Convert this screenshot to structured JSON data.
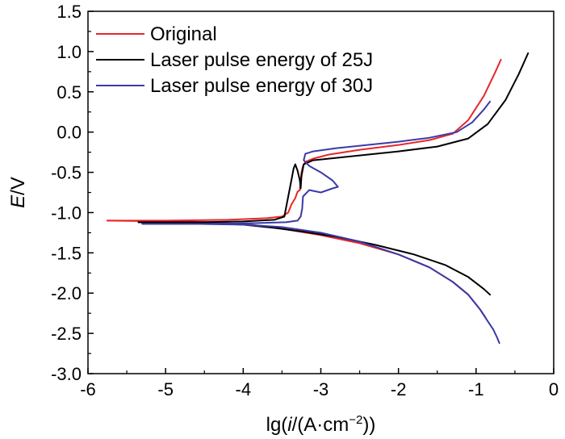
{
  "chart_data": {
    "type": "line",
    "title": "",
    "xlabel": {
      "prefix": "lg(",
      "italic": "i",
      "mid": "/(A·cm",
      "sup": "−2",
      "suffix": "))"
    },
    "ylabel": {
      "italic": "E",
      "rest": "/V"
    },
    "xlim": [
      -6,
      0
    ],
    "ylim": [
      -3.0,
      1.5
    ],
    "xticks": [
      -6,
      -5,
      -4,
      -3,
      -2,
      -1,
      0
    ],
    "xtick_labels": [
      "-6",
      "-5",
      "-4",
      "-3",
      "-2",
      "-1",
      "0"
    ],
    "yticks": [
      -3.0,
      -2.5,
      -2.0,
      -1.5,
      -1.0,
      -0.5,
      0.0,
      0.5,
      1.0,
      1.5
    ],
    "ytick_labels": [
      "-3.0",
      "-2.5",
      "-2.0",
      "-1.5",
      "-1.0",
      "-0.5",
      "0.0",
      "0.5",
      "1.0",
      "1.5"
    ],
    "legend_position": "top-left",
    "series": [
      {
        "name": "Original",
        "color": "#e8262a",
        "points": [
          [
            -5.75,
            -1.1
          ],
          [
            -5.0,
            -1.1
          ],
          [
            -4.2,
            -1.09
          ],
          [
            -3.7,
            -1.07
          ],
          [
            -3.5,
            -1.05
          ],
          [
            -3.42,
            -1.0
          ],
          [
            -3.38,
            -0.9
          ],
          [
            -3.33,
            -0.82
          ],
          [
            -3.3,
            -0.74
          ],
          [
            -3.27,
            -0.72
          ],
          [
            -3.26,
            -0.6
          ],
          [
            -3.25,
            -0.5
          ],
          [
            -3.23,
            -0.42
          ],
          [
            -3.2,
            -0.37
          ],
          [
            -3.1,
            -0.33
          ],
          [
            -2.9,
            -0.28
          ],
          [
            -2.5,
            -0.22
          ],
          [
            -2.0,
            -0.16
          ],
          [
            -1.6,
            -0.1
          ],
          [
            -1.3,
            -0.02
          ],
          [
            -1.1,
            0.15
          ],
          [
            -0.9,
            0.45
          ],
          [
            -0.75,
            0.75
          ],
          [
            -0.68,
            0.9
          ]
        ]
      },
      {
        "name": "Laser pulse energy of 25J",
        "color": "#000000",
        "points": [
          [
            -5.35,
            -1.12
          ],
          [
            -4.6,
            -1.12
          ],
          [
            -4.0,
            -1.11
          ],
          [
            -3.6,
            -1.09
          ],
          [
            -3.47,
            -1.05
          ],
          [
            -3.45,
            -0.95
          ],
          [
            -3.42,
            -0.8
          ],
          [
            -3.38,
            -0.6
          ],
          [
            -3.35,
            -0.45
          ],
          [
            -3.33,
            -0.4
          ],
          [
            -3.3,
            -0.48
          ],
          [
            -3.27,
            -0.6
          ],
          [
            -3.26,
            -0.7
          ],
          [
            -3.25,
            -0.55
          ],
          [
            -3.22,
            -0.4
          ],
          [
            -3.1,
            -0.35
          ],
          [
            -2.6,
            -0.3
          ],
          [
            -2.0,
            -0.24
          ],
          [
            -1.5,
            -0.18
          ],
          [
            -1.1,
            -0.08
          ],
          [
            -0.85,
            0.1
          ],
          [
            -0.62,
            0.4
          ],
          [
            -0.45,
            0.72
          ],
          [
            -0.33,
            0.98
          ]
        ]
      },
      {
        "name": "Laser pulse energy of 30J",
        "color": "#3a3aa8",
        "points": [
          [
            -5.3,
            -1.14
          ],
          [
            -4.5,
            -1.14
          ],
          [
            -3.8,
            -1.13
          ],
          [
            -3.45,
            -1.12
          ],
          [
            -3.3,
            -1.1
          ],
          [
            -3.26,
            -1.05
          ],
          [
            -3.24,
            -0.95
          ],
          [
            -3.23,
            -0.8
          ],
          [
            -3.15,
            -0.72
          ],
          [
            -3.0,
            -0.75
          ],
          [
            -2.85,
            -0.7
          ],
          [
            -2.78,
            -0.68
          ],
          [
            -2.85,
            -0.6
          ],
          [
            -3.0,
            -0.5
          ],
          [
            -3.15,
            -0.42
          ],
          [
            -3.22,
            -0.35
          ],
          [
            -3.2,
            -0.27
          ],
          [
            -3.1,
            -0.24
          ],
          [
            -2.8,
            -0.2
          ],
          [
            -2.4,
            -0.16
          ],
          [
            -2.0,
            -0.12
          ],
          [
            -1.6,
            -0.07
          ],
          [
            -1.25,
            0.0
          ],
          [
            -1.05,
            0.12
          ],
          [
            -0.9,
            0.28
          ],
          [
            -0.82,
            0.38
          ]
        ]
      }
    ],
    "cathodic_series": [
      {
        "name": "Original",
        "color": "#e8262a",
        "points": [
          [
            -5.75,
            -1.1
          ],
          [
            -5.0,
            -1.11
          ],
          [
            -4.4,
            -1.12
          ],
          [
            -3.9,
            -1.15
          ],
          [
            -3.5,
            -1.2
          ],
          [
            -3.0,
            -1.28
          ],
          [
            -2.5,
            -1.38
          ],
          [
            -2.0,
            -1.52
          ],
          [
            -1.6,
            -1.68
          ],
          [
            -1.3,
            -1.86
          ],
          [
            -1.1,
            -2.02
          ],
          [
            -0.95,
            -2.2
          ],
          [
            -0.88,
            -2.3
          ]
        ]
      },
      {
        "name": "Laser pulse energy of 25J",
        "color": "#000000",
        "points": [
          [
            -5.35,
            -1.12
          ],
          [
            -4.6,
            -1.13
          ],
          [
            -4.0,
            -1.15
          ],
          [
            -3.6,
            -1.19
          ],
          [
            -3.2,
            -1.24
          ],
          [
            -2.8,
            -1.3
          ],
          [
            -2.3,
            -1.4
          ],
          [
            -1.8,
            -1.52
          ],
          [
            -1.4,
            -1.65
          ],
          [
            -1.1,
            -1.8
          ],
          [
            -0.9,
            -1.95
          ],
          [
            -0.82,
            -2.02
          ]
        ]
      },
      {
        "name": "Laser pulse energy of 30J",
        "color": "#3a3aa8",
        "points": [
          [
            -5.3,
            -1.14
          ],
          [
            -4.6,
            -1.14
          ],
          [
            -4.0,
            -1.15
          ],
          [
            -3.5,
            -1.18
          ],
          [
            -3.0,
            -1.25
          ],
          [
            -2.5,
            -1.36
          ],
          [
            -2.0,
            -1.52
          ],
          [
            -1.6,
            -1.68
          ],
          [
            -1.3,
            -1.86
          ],
          [
            -1.1,
            -2.02
          ],
          [
            -0.95,
            -2.2
          ],
          [
            -0.85,
            -2.35
          ],
          [
            -0.78,
            -2.45
          ],
          [
            -0.73,
            -2.55
          ],
          [
            -0.7,
            -2.62
          ]
        ]
      }
    ]
  }
}
